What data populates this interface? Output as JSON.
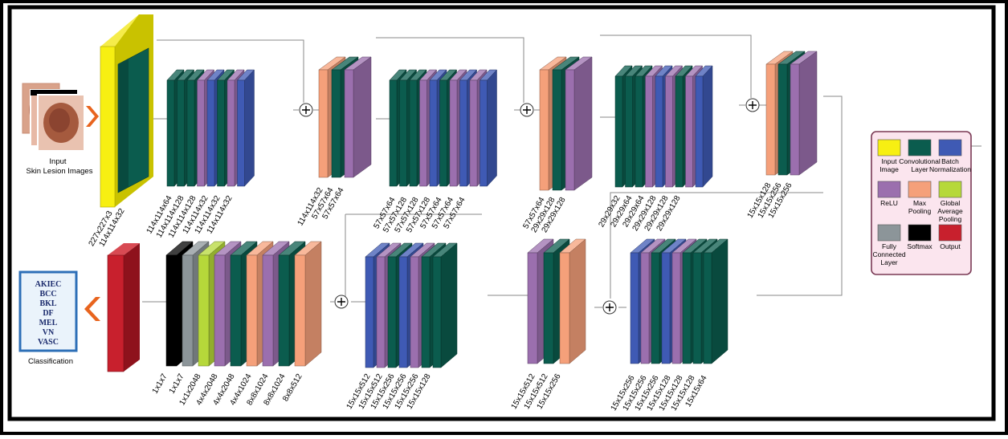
{
  "colors": {
    "input": "#f7ef12",
    "conv": "#0b5c4e",
    "bn": "#3f5ab4",
    "relu": "#9b6fae",
    "maxpool": "#f5a07a",
    "gap": "#b6d83a",
    "fc": "#8c9599",
    "softmax": "#000000",
    "output": "#c8202d"
  },
  "input": {
    "title": "Input",
    "subtitle": "Skin Lesion Images"
  },
  "classification": {
    "label": "Classification",
    "classes": [
      "AKIEC",
      "BCC",
      "BKL",
      "DF",
      "MEL",
      "VN",
      "VASC"
    ]
  },
  "legend": [
    {
      "key": "input",
      "label": [
        "Input",
        "Image"
      ]
    },
    {
      "key": "conv",
      "label": [
        "Convolutional",
        "Layer"
      ]
    },
    {
      "key": "bn",
      "label": [
        "Batch",
        "Normalization"
      ]
    },
    {
      "key": "relu",
      "label": [
        "ReLU"
      ]
    },
    {
      "key": "maxpool",
      "label": [
        "Max",
        "Pooling"
      ]
    },
    {
      "key": "gap",
      "label": [
        "Global",
        "Average",
        "Pooling"
      ]
    },
    {
      "key": "fc",
      "label": [
        "Fully",
        "Connected",
        "Layer"
      ]
    },
    {
      "key": "softmax",
      "label": [
        "Softmax"
      ]
    },
    {
      "key": "output",
      "label": [
        "Output"
      ]
    }
  ],
  "layer_groups": [
    {
      "id": "g1",
      "layers": [
        "conv",
        "conv",
        "conv",
        "relu",
        "bn",
        "conv",
        "relu",
        "bn"
      ],
      "labels": [
        "114x114x64",
        "114x114x128",
        "114x114x128",
        "114x114x32",
        "114x114x32",
        "114x114x32"
      ]
    },
    {
      "id": "g2",
      "layers": [
        "maxpool",
        "conv",
        "relu"
      ],
      "labels": [
        "114x114x32",
        "57x57x64",
        "57x57x64"
      ]
    },
    {
      "id": "g3",
      "layers": [
        "conv",
        "conv",
        "conv",
        "relu",
        "bn",
        "conv",
        "relu",
        "bn",
        "relu",
        "bn"
      ],
      "labels": [
        "57x57x64",
        "57x57x128",
        "57x57x128",
        "57x57x128",
        "57x57x64",
        "57x57x64",
        "57x57x64"
      ]
    },
    {
      "id": "g4",
      "layers": [
        "maxpool",
        "conv",
        "relu"
      ],
      "labels": [
        "57x57x64",
        "29x29x128",
        "29x29x128"
      ]
    },
    {
      "id": "g5",
      "layers": [
        "conv",
        "conv",
        "conv",
        "relu",
        "bn",
        "relu",
        "conv",
        "relu",
        "bn"
      ],
      "labels": [
        "29x29x32",
        "29x29x64",
        "29x29x64",
        "29x29x128",
        "29x29x128",
        "29x29x128"
      ]
    },
    {
      "id": "g6",
      "layers": [
        "maxpool",
        "conv",
        "relu"
      ],
      "labels": [
        "15x15x128",
        "15x15x256",
        "15x15x256"
      ]
    },
    {
      "id": "g7",
      "layers": [
        "bn",
        "relu",
        "conv",
        "bn",
        "relu",
        "conv",
        "conv",
        "conv"
      ],
      "labels": [
        "15x15x256",
        "15x15x256",
        "15x15x256",
        "15x15x128",
        "15x15x128",
        "15x15x128",
        "15x15x64"
      ]
    },
    {
      "id": "g8",
      "layers": [
        "relu",
        "conv",
        "maxpool"
      ],
      "labels": [
        "15x15x512",
        "15x15x512",
        "15x15x256"
      ]
    },
    {
      "id": "g9",
      "layers": [
        "bn",
        "relu",
        "conv",
        "bn",
        "relu",
        "conv",
        "conv"
      ],
      "labels": [
        "15x15x512",
        "15x15x512",
        "15x15x256",
        "15x15x256",
        "15x15x256",
        "15x15x128"
      ]
    },
    {
      "id": "g10",
      "layers": [
        "softmax",
        "fc",
        "gap",
        "relu",
        "conv",
        "maxpool",
        "relu",
        "conv",
        "maxpool"
      ],
      "labels": [
        "1x1x7",
        "1x1x7",
        "1x1x2048",
        "4x4x2048",
        "4x4x2048",
        "4x4x1024",
        "8x8x1024",
        "8x8x1024",
        "8x8x512"
      ]
    }
  ],
  "input_block_labels": [
    "227x227x3",
    "114x114x32"
  ]
}
